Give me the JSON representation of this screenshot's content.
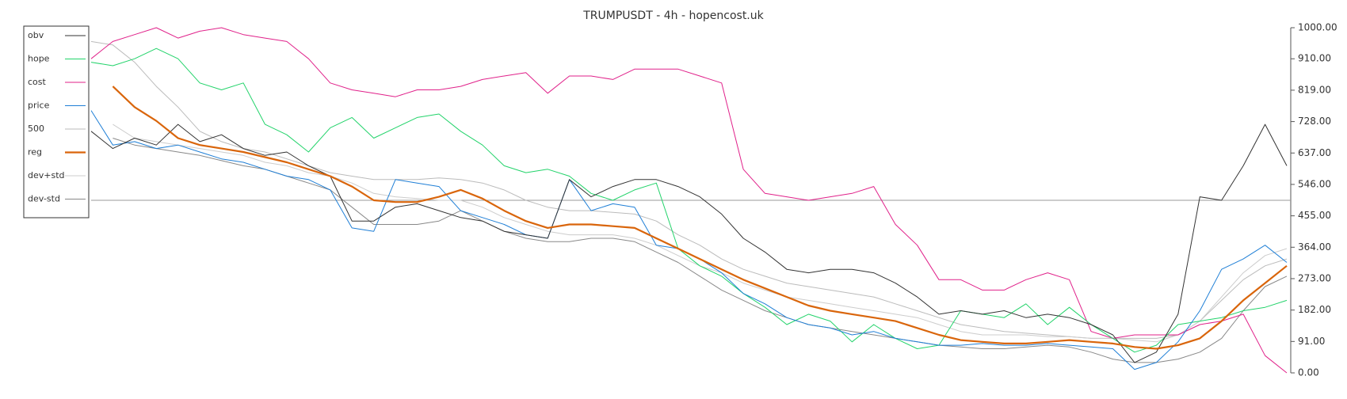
{
  "chart_data": {
    "type": "line",
    "title": "TRUMPUSDT - 4h - hopencost.uk",
    "legend": "upper left",
    "reference_line": 500,
    "ylim": [
      0,
      1000
    ],
    "yticks": [
      {
        "value": 0,
        "label": "0.00"
      },
      {
        "value": 91,
        "label": "91.00"
      },
      {
        "value": 182,
        "label": "182.00"
      },
      {
        "value": 273,
        "label": "273.00"
      },
      {
        "value": 364,
        "label": "364.00"
      },
      {
        "value": 455,
        "label": "455.00"
      },
      {
        "value": 546,
        "label": "546.00"
      },
      {
        "value": 637,
        "label": "637.00"
      },
      {
        "value": 728,
        "label": "728.00"
      },
      {
        "value": 819,
        "label": "819.00"
      },
      {
        "value": 910,
        "label": "910.00"
      },
      {
        "value": 1000,
        "label": "1000.00"
      }
    ],
    "series": [
      {
        "name": "obv",
        "color": "#333333",
        "width": 1,
        "values": [
          700,
          650,
          680,
          660,
          720,
          670,
          690,
          650,
          630,
          640,
          600,
          570,
          440,
          440,
          480,
          490,
          470,
          450,
          440,
          410,
          400,
          390,
          560,
          510,
          540,
          560,
          560,
          540,
          510,
          460,
          390,
          350,
          300,
          290,
          300,
          300,
          290,
          260,
          220,
          170,
          180,
          170,
          180,
          160,
          170,
          160,
          140,
          110,
          30,
          60,
          170,
          510,
          500,
          600,
          720,
          600
        ]
      },
      {
        "name": "hope",
        "color": "#22d36a",
        "width": 1,
        "values": [
          900,
          890,
          910,
          940,
          910,
          840,
          820,
          840,
          720,
          690,
          640,
          710,
          740,
          680,
          710,
          740,
          750,
          700,
          660,
          600,
          580,
          590,
          570,
          520,
          500,
          530,
          550,
          360,
          310,
          280,
          230,
          190,
          140,
          170,
          150,
          90,
          140,
          100,
          70,
          80,
          180,
          170,
          160,
          200,
          140,
          190,
          140,
          100,
          60,
          80,
          140,
          150,
          160,
          180,
          190,
          210
        ]
      },
      {
        "name": "cost",
        "color": "#e0218a",
        "width": 1,
        "values": [
          910,
          960,
          980,
          1000,
          970,
          990,
          1000,
          980,
          970,
          960,
          910,
          840,
          820,
          810,
          800,
          820,
          820,
          830,
          850,
          860,
          870,
          810,
          860,
          860,
          850,
          880,
          880,
          880,
          860,
          840,
          590,
          520,
          510,
          500,
          510,
          520,
          540,
          430,
          370,
          270,
          270,
          240,
          240,
          270,
          290,
          270,
          120,
          100,
          110,
          110,
          110,
          140,
          150,
          170,
          50,
          0
        ]
      },
      {
        "name": "price",
        "color": "#1f7fd6",
        "width": 1,
        "values": [
          760,
          660,
          670,
          650,
          660,
          640,
          620,
          610,
          590,
          570,
          560,
          530,
          420,
          410,
          560,
          550,
          540,
          470,
          450,
          430,
          400,
          390,
          560,
          470,
          490,
          480,
          370,
          360,
          330,
          290,
          230,
          200,
          160,
          140,
          130,
          110,
          120,
          100,
          90,
          80,
          80,
          85,
          80,
          80,
          85,
          80,
          75,
          70,
          10,
          30,
          90,
          180,
          300,
          330,
          370,
          320
        ]
      },
      {
        "name": "500",
        "color": "#bbbbbb",
        "width": 1,
        "values": [
          960,
          950,
          900,
          830,
          770,
          700,
          670,
          650,
          640,
          620,
          600,
          580,
          570,
          560,
          560,
          560,
          565,
          560,
          550,
          530,
          500,
          480,
          470,
          470,
          465,
          460,
          440,
          400,
          370,
          330,
          300,
          280,
          260,
          250,
          240,
          230,
          220,
          200,
          180,
          160,
          140,
          130,
          120,
          115,
          110,
          105,
          100,
          100,
          100,
          100,
          110,
          150,
          210,
          270,
          310,
          330
        ]
      },
      {
        "name": "reg",
        "color": "#d9650b",
        "width": 2.2,
        "values": [
          null,
          830,
          770,
          730,
          680,
          660,
          650,
          640,
          625,
          610,
          590,
          570,
          540,
          500,
          495,
          495,
          510,
          530,
          505,
          470,
          440,
          420,
          430,
          430,
          425,
          420,
          390,
          360,
          330,
          300,
          270,
          245,
          220,
          195,
          180,
          170,
          160,
          150,
          130,
          110,
          95,
          90,
          85,
          85,
          90,
          95,
          90,
          85,
          75,
          70,
          80,
          100,
          150,
          210,
          260,
          310
        ]
      },
      {
        "name": "dev+std",
        "color": "#cccccc",
        "width": 1,
        "values": [
          null,
          720,
          680,
          670,
          660,
          650,
          640,
          630,
          610,
          600,
          580,
          570,
          550,
          520,
          510,
          505,
          500,
          500,
          480,
          450,
          430,
          410,
          400,
          400,
          400,
          390,
          370,
          340,
          310,
          290,
          260,
          240,
          220,
          210,
          200,
          190,
          180,
          170,
          160,
          140,
          120,
          110,
          110,
          110,
          105,
          105,
          100,
          100,
          95,
          90,
          110,
          150,
          220,
          290,
          340,
          360
        ]
      },
      {
        "name": "dev-std",
        "color": "#888888",
        "width": 1,
        "values": [
          null,
          680,
          660,
          650,
          640,
          630,
          615,
          600,
          590,
          570,
          550,
          530,
          480,
          430,
          430,
          430,
          440,
          470,
          440,
          410,
          390,
          380,
          380,
          390,
          390,
          380,
          350,
          320,
          280,
          240,
          210,
          180,
          160,
          140,
          130,
          120,
          110,
          100,
          90,
          80,
          75,
          70,
          70,
          75,
          80,
          75,
          60,
          40,
          30,
          30,
          40,
          60,
          100,
          180,
          250,
          280
        ]
      }
    ]
  }
}
